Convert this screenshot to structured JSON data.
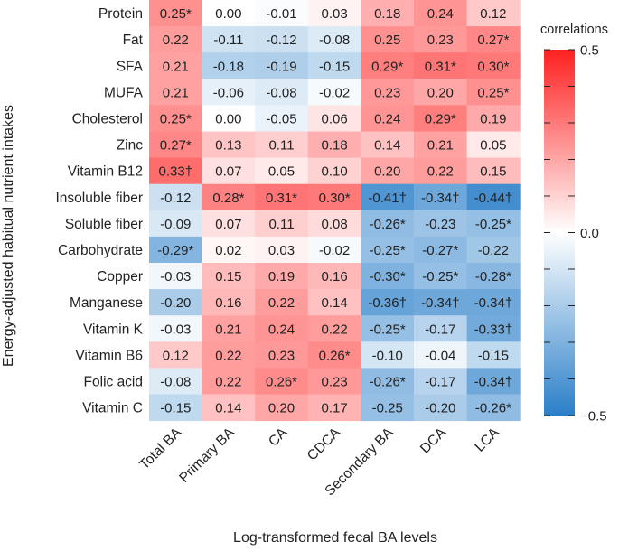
{
  "chart_data": {
    "type": "heatmap",
    "xlabel": "Log-transformed fecal BA levels",
    "ylabel": "Energy-adjusted habitual nutrient intakes",
    "columns": [
      "Total BA",
      "Primary BA",
      "CA",
      "CDCA",
      "Secondary BA",
      "DCA",
      "LCA"
    ],
    "rows": [
      "Protein",
      "Fat",
      "SFA",
      "MUFA",
      "Cholesterol",
      "Zinc",
      "Vitamin B12",
      "Insoluble fiber",
      "Soluble fiber",
      "Carbohydrate",
      "Copper",
      "Manganese",
      "Vitamin K",
      "Vitamin B6",
      "Folic acid",
      "Vitamin C"
    ],
    "values": [
      [
        0.25,
        0.0,
        -0.01,
        0.03,
        0.18,
        0.24,
        0.12
      ],
      [
        0.22,
        -0.11,
        -0.12,
        -0.08,
        0.25,
        0.23,
        0.27
      ],
      [
        0.21,
        -0.18,
        -0.19,
        -0.15,
        0.29,
        0.31,
        0.3
      ],
      [
        0.21,
        -0.06,
        -0.08,
        -0.02,
        0.23,
        0.2,
        0.25
      ],
      [
        0.25,
        0.0,
        -0.05,
        0.06,
        0.24,
        0.29,
        0.19
      ],
      [
        0.27,
        0.13,
        0.11,
        0.18,
        0.14,
        0.21,
        0.05
      ],
      [
        0.33,
        0.07,
        0.05,
        0.1,
        0.2,
        0.22,
        0.15
      ],
      [
        -0.12,
        0.28,
        0.31,
        0.3,
        -0.41,
        -0.34,
        -0.44
      ],
      [
        -0.09,
        0.07,
        0.11,
        0.08,
        -0.26,
        -0.23,
        -0.25
      ],
      [
        -0.29,
        0.02,
        0.03,
        -0.02,
        -0.25,
        -0.27,
        -0.22
      ],
      [
        -0.03,
        0.15,
        0.19,
        0.16,
        -0.3,
        -0.25,
        -0.28
      ],
      [
        -0.2,
        0.16,
        0.22,
        0.14,
        -0.36,
        -0.34,
        -0.34
      ],
      [
        -0.03,
        0.21,
        0.24,
        0.22,
        -0.25,
        -0.17,
        -0.33
      ],
      [
        0.12,
        0.22,
        0.23,
        0.26,
        -0.1,
        -0.04,
        -0.15
      ],
      [
        -0.08,
        0.22,
        0.26,
        0.23,
        -0.26,
        -0.17,
        -0.34
      ],
      [
        -0.15,
        0.14,
        0.2,
        0.17,
        -0.25,
        -0.2,
        -0.26
      ]
    ],
    "labels": [
      [
        "0.25*",
        "0.00",
        "-0.01",
        "0.03",
        "0.18",
        "0.24",
        "0.12"
      ],
      [
        "0.22",
        "-0.11",
        "-0.12",
        "-0.08",
        "0.25",
        "0.23",
        "0.27*"
      ],
      [
        "0.21",
        "-0.18",
        "-0.19",
        "-0.15",
        "0.29*",
        "0.31*",
        "0.30*"
      ],
      [
        "0.21",
        "-0.06",
        "-0.08",
        "-0.02",
        "0.23",
        "0.20",
        "0.25*"
      ],
      [
        "0.25*",
        "0.00",
        "-0.05",
        "0.06",
        "0.24",
        "0.29*",
        "0.19"
      ],
      [
        "0.27*",
        "0.13",
        "0.11",
        "0.18",
        "0.14",
        "0.21",
        "0.05"
      ],
      [
        "0.33†",
        "0.07",
        "0.05",
        "0.10",
        "0.20",
        "0.22",
        "0.15"
      ],
      [
        "-0.12",
        "0.28*",
        "0.31*",
        "0.30*",
        "-0.41†",
        "-0.34†",
        "-0.44†"
      ],
      [
        "-0.09",
        "0.07",
        "0.11",
        "0.08",
        "-0.26*",
        "-0.23",
        "-0.25*"
      ],
      [
        "-0.29*",
        "0.02",
        "0.03",
        "-0.02",
        "-0.25*",
        "-0.27*",
        "-0.22"
      ],
      [
        "-0.03",
        "0.15",
        "0.19",
        "0.16",
        "-0.30*",
        "-0.25*",
        "-0.28*"
      ],
      [
        "-0.20",
        "0.16",
        "0.22",
        "0.14",
        "-0.36†",
        "-0.34†",
        "-0.34†"
      ],
      [
        "-0.03",
        "0.21",
        "0.24",
        "0.22",
        "-0.25*",
        "-0.17",
        "-0.33†"
      ],
      [
        "0.12",
        "0.22",
        "0.23",
        "0.26*",
        "-0.10",
        "-0.04",
        "-0.15"
      ],
      [
        "-0.08",
        "0.22",
        "0.26*",
        "0.23",
        "-0.26*",
        "-0.17",
        "-0.34†"
      ],
      [
        "-0.15",
        "0.14",
        "0.20",
        "0.17",
        "-0.25",
        "-0.20",
        "-0.26*"
      ]
    ],
    "color_scale": {
      "min": -0.5,
      "max": 0.5,
      "low_color": "#2a7fc9",
      "mid_color": "#ffffff",
      "high_color": "#ff2020"
    },
    "legend": {
      "title": "correlations",
      "ticks": [
        0.5,
        0.0,
        -0.5
      ],
      "tick_labels": [
        "0.5",
        "0.0",
        "−0.5"
      ],
      "position": "right"
    }
  }
}
